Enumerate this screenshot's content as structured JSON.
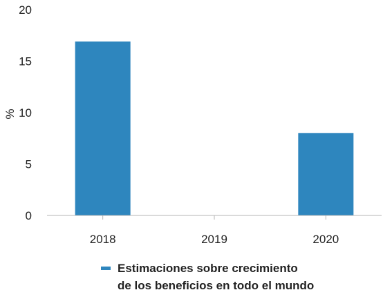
{
  "chart_data": {
    "type": "bar",
    "categories": [
      "2018",
      "2019",
      "2020"
    ],
    "series": [
      {
        "name": "Estimaciones sobre crecimiento de los beneficios en todo el mundo",
        "legend_lines": [
          "Estimaciones sobre crecimiento",
          "de los beneficios en todo el mundo"
        ],
        "values": [
          16.9,
          0,
          8.0
        ],
        "color": "#2e86be"
      }
    ],
    "ylabel": "%",
    "ylim": [
      0,
      20
    ],
    "yticks": [
      "0",
      "5",
      "10",
      "15",
      "20"
    ],
    "grid": false,
    "legend_position": "bottom"
  }
}
